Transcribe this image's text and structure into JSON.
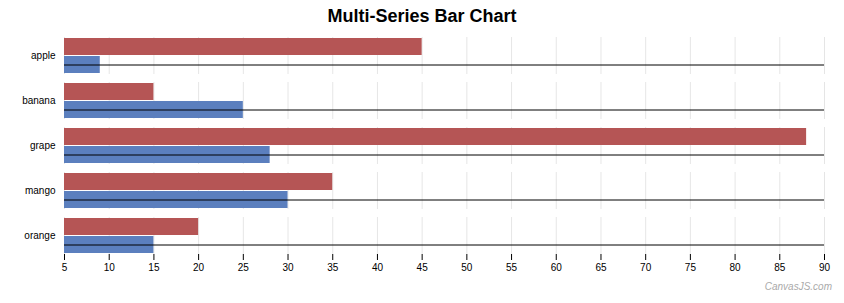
{
  "chart_data": {
    "type": "bar",
    "title": "Multi-Series Bar Chart",
    "orientation": "horizontal",
    "categories": [
      "apple",
      "banana",
      "grape",
      "mango",
      "orange"
    ],
    "series": [
      {
        "color": "#5b7fbe",
        "values": [
          9,
          25,
          28,
          30,
          15
        ]
      },
      {
        "color": "#b55555",
        "values": [
          45,
          15,
          88,
          35,
          20
        ]
      }
    ],
    "xlim": [
      5,
      90
    ],
    "xticks": [
      5,
      10,
      15,
      20,
      25,
      30,
      35,
      40,
      45,
      50,
      55,
      60,
      65,
      70,
      75,
      80,
      85,
      90
    ],
    "grid": true,
    "annotations": [
      "CanvasJS.com"
    ]
  }
}
